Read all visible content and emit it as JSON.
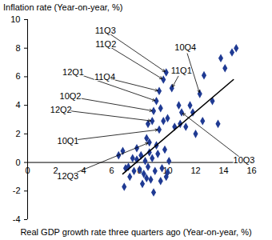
{
  "chart_data": {
    "type": "scatter",
    "y_label": "Inflation rate (Year-on-year, %)",
    "x_label": "Real GDP growth rate three quarters ago (Year-on-year, %)",
    "x": [
      9.9,
      9.7,
      9.2,
      9.4,
      9.0,
      8.9,
      9.4,
      8.7,
      10.3,
      12.3,
      11.0,
      6.5,
      6.8,
      7.0,
      7.3,
      7.5,
      7.6,
      7.8,
      7.8,
      8.0,
      8.1,
      8.2,
      8.3,
      8.4,
      8.5,
      8.6,
      8.7,
      8.8,
      8.9,
      9.0,
      9.1,
      9.2,
      9.3,
      9.5,
      9.6,
      9.8,
      9.9,
      10.1,
      10.0,
      8.6,
      9.7,
      10.0,
      10.5,
      10.9,
      11.3,
      11.6,
      12.0,
      12.5,
      12.6,
      13.2,
      13.6,
      14.1,
      14.6,
      14.9,
      13.8,
      10.8,
      11.8,
      9.5,
      8.5,
      7.2,
      6.9
    ],
    "y": [
      6.3,
      5.8,
      4.3,
      5.0,
      3.6,
      2.9,
      2.3,
      1.4,
      5.2,
      4.8,
      3.5,
      0.5,
      0.8,
      -0.4,
      -1.0,
      0.3,
      -0.6,
      0.2,
      1.0,
      -0.5,
      0.5,
      -1.5,
      -0.8,
      0.1,
      1.7,
      -0.3,
      0.7,
      -1.2,
      0.3,
      -2.1,
      -0.6,
      1.2,
      0.6,
      -1.3,
      -0.4,
      0.9,
      -1.0,
      0.1,
      -0.7,
      2.7,
      2.9,
      3.1,
      2.5,
      2.7,
      2.5,
      4.0,
      2.0,
      2.9,
      6.1,
      4.3,
      2.7,
      6.6,
      7.7,
      8.0,
      7.3,
      4.0,
      3.5,
      3.8,
      -1.1,
      -0.3,
      -1.7
    ],
    "point_labels": [
      "11Q3",
      "11Q2",
      "12Q1",
      "11Q4",
      "10Q2",
      "12Q2",
      "10Q1",
      "12Q3",
      "11Q1",
      "10Q4",
      "10Q3",
      null,
      null,
      null,
      null,
      null,
      null,
      null,
      null,
      null,
      null,
      null,
      null,
      null,
      null,
      null,
      null,
      null,
      null,
      null,
      null,
      null,
      null,
      null,
      null,
      null,
      null,
      null,
      null,
      null,
      null,
      null,
      null,
      null,
      null,
      null,
      null,
      null,
      null,
      null,
      null,
      null,
      null,
      null,
      null,
      null,
      null,
      null,
      null,
      null,
      null
    ],
    "color": "#1f3a93",
    "marker": "diamond",
    "trend_line": {
      "x": [
        6.8,
        14.7
      ],
      "y": [
        -0.8,
        5.8
      ],
      "color": "#000000"
    },
    "xlim": [
      0,
      16
    ],
    "ylim": [
      -4,
      10
    ],
    "xticks": [
      0,
      2,
      4,
      6,
      8,
      10,
      12,
      14,
      16
    ],
    "yticks": [
      -4,
      -2,
      0,
      2,
      4,
      6,
      8,
      10
    ],
    "grid": false
  }
}
